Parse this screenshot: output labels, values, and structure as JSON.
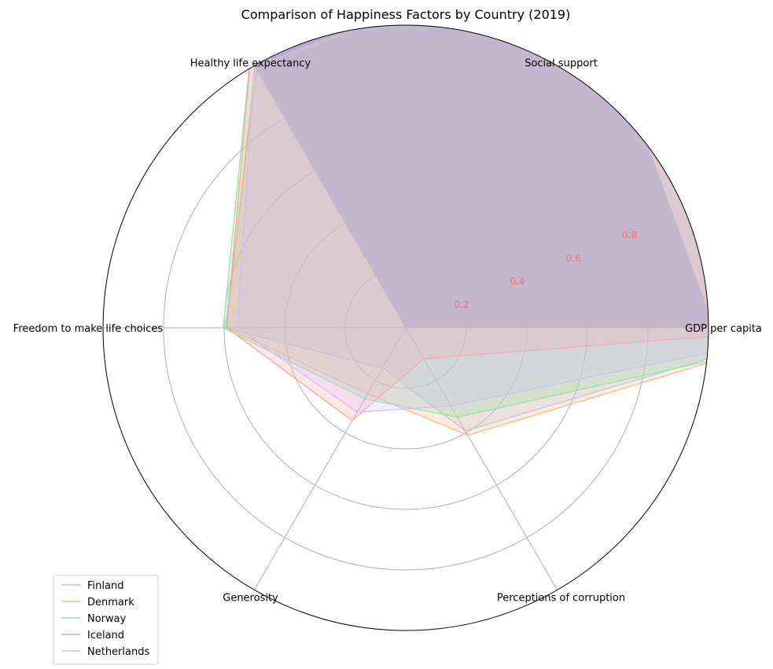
{
  "chart_data": {
    "type": "radar",
    "title": "Comparison of Happiness Factors by Country (2019)",
    "categories": [
      "GDP per capita",
      "Social support",
      "Healthy life expectancy",
      "Freedom to make life choices",
      "Generosity",
      "Perceptions of corruption"
    ],
    "rlim": [
      0,
      1.0
    ],
    "rticks": [
      0.2,
      0.4,
      0.6,
      0.8
    ],
    "rtick_labels": [
      "0.2",
      "0.4",
      "0.6",
      "0.8"
    ],
    "rtick_color": "#ff6b6b",
    "grid": true,
    "legend_position": "lower-left",
    "series": [
      {
        "name": "Finland",
        "color": "#a1c9f4",
        "values": [
          1.34,
          1.587,
          0.986,
          0.596,
          0.153,
          0.393
        ]
      },
      {
        "name": "Denmark",
        "color": "#ffb482",
        "values": [
          1.383,
          1.573,
          0.996,
          0.592,
          0.252,
          0.41
        ]
      },
      {
        "name": "Norway",
        "color": "#8de5a1",
        "values": [
          1.488,
          1.582,
          1.028,
          0.603,
          0.271,
          0.341
        ]
      },
      {
        "name": "Iceland",
        "color": "#ff9f9b",
        "values": [
          1.38,
          1.624,
          1.026,
          0.591,
          0.354,
          0.118
        ]
      },
      {
        "name": "Netherlands",
        "color": "#d0bbff",
        "values": [
          1.396,
          1.522,
          0.999,
          0.557,
          0.322,
          0.298
        ]
      }
    ],
    "big_fill_color": "#9494ff"
  }
}
